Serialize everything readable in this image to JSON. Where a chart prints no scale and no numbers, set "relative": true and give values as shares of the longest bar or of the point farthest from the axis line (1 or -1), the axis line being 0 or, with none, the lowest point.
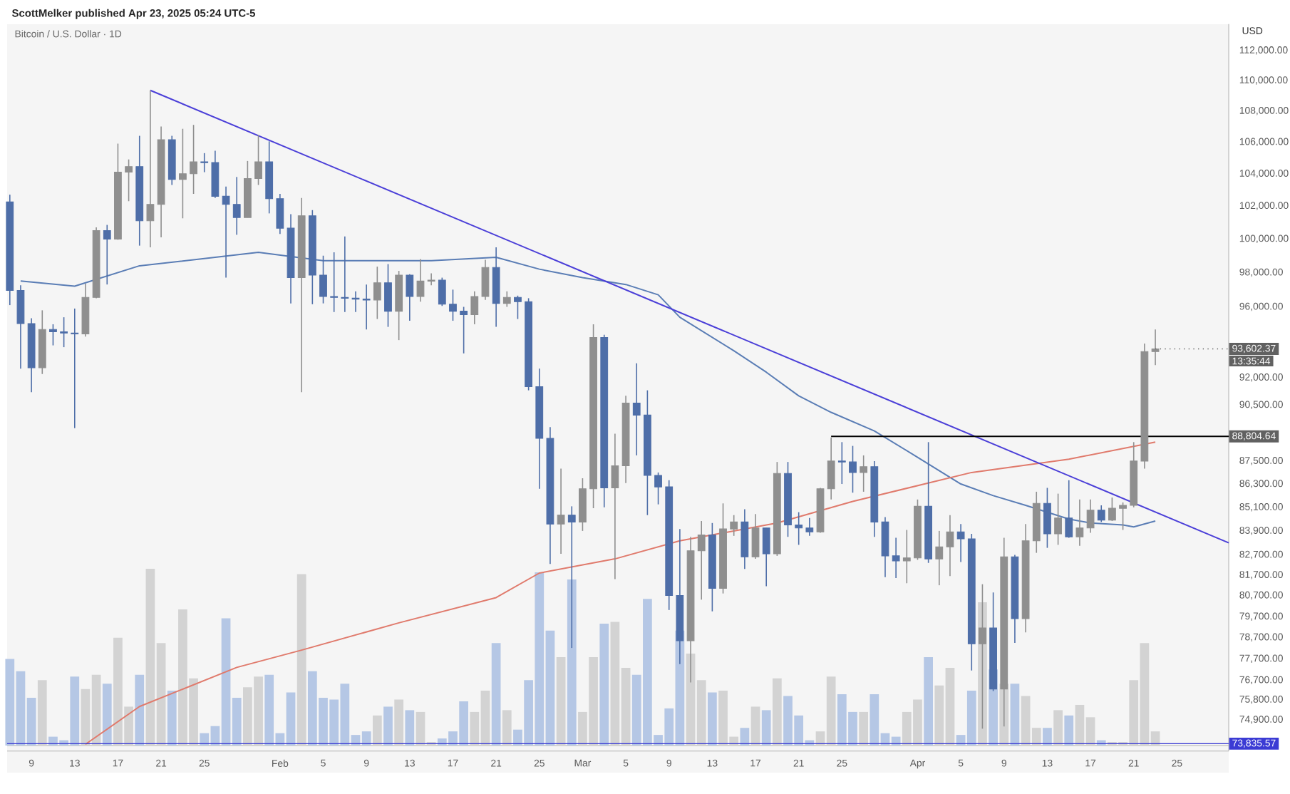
{
  "chart_data": [
    {
      "type": "candlestick",
      "title": "Bitcoin / U.S. Dollar · 1D",
      "ylabel": "USD",
      "annotations": [
        "ScottMelker published Apr 23, 2025 05:24 UTC-5",
        {
          "text": "93,602.37",
          "x": "2025-04-23",
          "y": 93602.37
        },
        "13:35:44",
        {
          "text": "88,804.64",
          "x": "2025-04-29T19:00",
          "y": 88804.64
        }
      ],
      "log": true,
      "xlim": [
        "2025-01-06T18:00",
        "2025-04-29T19:00"
      ],
      "ylim": [
        73500,
        113800
      ],
      "xticks": [
        {
          "value": "2025-01-09",
          "label": "9"
        },
        {
          "value": "2025-01-13",
          "label": "13"
        },
        {
          "value": "2025-01-17",
          "label": "17"
        },
        {
          "value": "2025-01-21",
          "label": "21"
        },
        {
          "value": "2025-01-25",
          "label": "25"
        },
        {
          "value": "2025-02-01",
          "label": "Feb"
        },
        {
          "value": "2025-02-05",
          "label": "5"
        },
        {
          "value": "2025-02-09",
          "label": "9"
        },
        {
          "value": "2025-02-13",
          "label": "13"
        },
        {
          "value": "2025-02-17",
          "label": "17"
        },
        {
          "value": "2025-02-21",
          "label": "21"
        },
        {
          "value": "2025-02-25",
          "label": "25"
        },
        {
          "value": "2025-03-01",
          "label": "Mar"
        },
        {
          "value": "2025-03-05",
          "label": "5"
        },
        {
          "value": "2025-03-09",
          "label": "9"
        },
        {
          "value": "2025-03-13",
          "label": "13"
        },
        {
          "value": "2025-03-17",
          "label": "17"
        },
        {
          "value": "2025-03-21",
          "label": "21"
        },
        {
          "value": "2025-03-25",
          "label": "25"
        },
        {
          "value": "2025-04-01",
          "label": "Apr"
        },
        {
          "value": "2025-04-05",
          "label": "5"
        },
        {
          "value": "2025-04-09",
          "label": "9"
        },
        {
          "value": "2025-04-13",
          "label": "13"
        },
        {
          "value": "2025-04-17",
          "label": "17"
        },
        {
          "value": "2025-04-21",
          "label": "21"
        },
        {
          "value": "2025-04-25",
          "label": "25"
        }
      ],
      "yticks": [
        {
          "value": 112000,
          "label": "112,000.00"
        },
        {
          "value": 110000,
          "label": "110,000.00"
        },
        {
          "value": 108000,
          "label": "108,000.00"
        },
        {
          "value": 106000,
          "label": "106,000.00"
        },
        {
          "value": 104000,
          "label": "104,000.00"
        },
        {
          "value": 102000,
          "label": "102,000.00"
        },
        {
          "value": 100000,
          "label": "100,000.00"
        },
        {
          "value": 98000,
          "label": "98,000.00"
        },
        {
          "value": 96000,
          "label": "96,000.00"
        },
        {
          "value": 92000,
          "label": "92,000.00"
        },
        {
          "value": 90500,
          "label": "90,500.00"
        },
        {
          "value": 87500,
          "label": "87,500.00"
        },
        {
          "value": 86300,
          "label": "86,300.00"
        },
        {
          "value": 85100,
          "label": "85,100.00"
        },
        {
          "value": 83900,
          "label": "83,900.00"
        },
        {
          "value": 82700,
          "label": "82,700.00"
        },
        {
          "value": 81700,
          "label": "81,700.00"
        },
        {
          "value": 80700,
          "label": "80,700.00"
        },
        {
          "value": 79700,
          "label": "79,700.00"
        },
        {
          "value": 78700,
          "label": "78,700.00"
        },
        {
          "value": 77700,
          "label": "77,700.00"
        },
        {
          "value": 76700,
          "label": "76,700.00"
        },
        {
          "value": 75800,
          "label": "75,800.00"
        },
        {
          "value": 74900,
          "label": "74,900.00"
        }
      ],
      "ref_lines": [
        {
          "axis": "y",
          "value": 73835.57,
          "label": "73,835.57",
          "color": "#3b3bd4"
        }
      ],
      "x": [
        "2025-01-07",
        "2025-01-08",
        "2025-01-09",
        "2025-01-10",
        "2025-01-11",
        "2025-01-12",
        "2025-01-13",
        "2025-01-14",
        "2025-01-15",
        "2025-01-16",
        "2025-01-17",
        "2025-01-18",
        "2025-01-19",
        "2025-01-20",
        "2025-01-21",
        "2025-01-22",
        "2025-01-23",
        "2025-01-24",
        "2025-01-25",
        "2025-01-26",
        "2025-01-27",
        "2025-01-28",
        "2025-01-29",
        "2025-01-30",
        "2025-01-31",
        "2025-02-01",
        "2025-02-02",
        "2025-02-03",
        "2025-02-04",
        "2025-02-05",
        "2025-02-06",
        "2025-02-07",
        "2025-02-08",
        "2025-02-09",
        "2025-02-10",
        "2025-02-11",
        "2025-02-12",
        "2025-02-13",
        "2025-02-14",
        "2025-02-15",
        "2025-02-16",
        "2025-02-17",
        "2025-02-18",
        "2025-02-19",
        "2025-02-20",
        "2025-02-21",
        "2025-02-22",
        "2025-02-23",
        "2025-02-24",
        "2025-02-25",
        "2025-02-26",
        "2025-02-27",
        "2025-02-28",
        "2025-03-01",
        "2025-03-02",
        "2025-03-03",
        "2025-03-04",
        "2025-03-05",
        "2025-03-06",
        "2025-03-07",
        "2025-03-08",
        "2025-03-09",
        "2025-03-10",
        "2025-03-11",
        "2025-03-12",
        "2025-03-13",
        "2025-03-14",
        "2025-03-15",
        "2025-03-16",
        "2025-03-17",
        "2025-03-18",
        "2025-03-19",
        "2025-03-20",
        "2025-03-21",
        "2025-03-22",
        "2025-03-23",
        "2025-03-24",
        "2025-03-25",
        "2025-03-26",
        "2025-03-27",
        "2025-03-28",
        "2025-03-29",
        "2025-03-30",
        "2025-03-31",
        "2025-04-01",
        "2025-04-02",
        "2025-04-03",
        "2025-04-04",
        "2025-04-05",
        "2025-04-06",
        "2025-04-07",
        "2025-04-08",
        "2025-04-09",
        "2025-04-10",
        "2025-04-11",
        "2025-04-12",
        "2025-04-13",
        "2025-04-14",
        "2025-04-15",
        "2025-04-16",
        "2025-04-17",
        "2025-04-18",
        "2025-04-19",
        "2025-04-20",
        "2025-04-21",
        "2025-04-22",
        "2025-04-23"
      ],
      "ohlc": [
        [
          102250,
          102700,
          96100,
          96950
        ],
        [
          96950,
          97250,
          92500,
          95040
        ],
        [
          95040,
          95350,
          91200,
          92550
        ],
        [
          92550,
          95800,
          92200,
          94700
        ],
        [
          94700,
          95000,
          93800,
          94570
        ],
        [
          94570,
          95400,
          93700,
          94500
        ],
        [
          94500,
          95900,
          89250,
          94450
        ],
        [
          94450,
          97350,
          94300,
          96550
        ],
        [
          96550,
          100700,
          96500,
          100500
        ],
        [
          100500,
          100850,
          97300,
          99990
        ],
        [
          99990,
          105900,
          99950,
          104100
        ],
        [
          104100,
          104900,
          102300,
          104450
        ],
        [
          104450,
          106400,
          99600,
          101100
        ],
        [
          101100,
          109350,
          99500,
          102100
        ],
        [
          102100,
          107000,
          100100,
          106150
        ],
        [
          106150,
          106400,
          103300,
          103650
        ],
        [
          103650,
          106850,
          101250,
          104000
        ],
        [
          104000,
          107100,
          102750,
          104750
        ],
        [
          104750,
          105300,
          104100,
          104700
        ],
        [
          104700,
          105450,
          102500,
          102600
        ],
        [
          102600,
          103200,
          97700,
          102100
        ],
        [
          102100,
          103800,
          100250,
          101300
        ],
        [
          101300,
          104800,
          101300,
          103700
        ],
        [
          103700,
          106450,
          103300,
          104750
        ],
        [
          104750,
          106050,
          101550,
          102450
        ],
        [
          102450,
          102750,
          100300,
          100650
        ],
        [
          100650,
          101500,
          96200,
          97700
        ],
        [
          97700,
          102500,
          91200,
          101400
        ],
        [
          101400,
          101750,
          96150,
          97850
        ],
        [
          97850,
          99000,
          96200,
          96600
        ],
        [
          96600,
          99200,
          95700,
          96550
        ],
        [
          96550,
          100150,
          95700,
          96500
        ],
        [
          96500,
          96900,
          95700,
          96450
        ],
        [
          96450,
          97300,
          94700,
          96400
        ],
        [
          96400,
          98350,
          95300,
          97400
        ],
        [
          97400,
          98500,
          94850,
          95750
        ],
        [
          95750,
          98100,
          94100,
          97850
        ],
        [
          97850,
          97900,
          95200,
          96600
        ],
        [
          96600,
          98800,
          96300,
          97500
        ],
        [
          97500,
          97950,
          97250,
          97550
        ],
        [
          97550,
          97700,
          96050,
          96150
        ],
        [
          96150,
          97000,
          95200,
          95750
        ],
        [
          95750,
          96000,
          93350,
          95550
        ],
        [
          95550,
          96900,
          95000,
          96600
        ],
        [
          96600,
          98750,
          96400,
          98300
        ],
        [
          98300,
          99500,
          94850,
          96200
        ],
        [
          96200,
          96900,
          96000,
          96550
        ],
        [
          96550,
          96650,
          95300,
          96300
        ],
        [
          96300,
          96500,
          91300,
          91500
        ],
        [
          91500,
          92500,
          86050,
          88700
        ],
        [
          88700,
          89300,
          82250,
          84250
        ],
        [
          84250,
          87100,
          82750,
          84700
        ],
        [
          84700,
          85150,
          78200,
          84350
        ],
        [
          84350,
          86600,
          83900,
          86050
        ],
        [
          86050,
          95000,
          85050,
          94250
        ],
        [
          94250,
          94400,
          85100,
          86100
        ],
        [
          86100,
          88950,
          81500,
          87250
        ],
        [
          87250,
          91000,
          86350,
          90600
        ],
        [
          90600,
          92800,
          87800,
          89950
        ],
        [
          89950,
          91300,
          84700,
          86750
        ],
        [
          86750,
          86900,
          85250,
          86150
        ],
        [
          86150,
          86500,
          80000,
          80700
        ],
        [
          80700,
          84000,
          77450,
          78550
        ],
        [
          78550,
          83600,
          76600,
          82900
        ],
        [
          82900,
          84400,
          80500,
          83700
        ],
        [
          83700,
          84300,
          79950,
          81050
        ],
        [
          81050,
          85300,
          80800,
          84000
        ],
        [
          84000,
          84700,
          83650,
          84350
        ],
        [
          84350,
          85000,
          82000,
          82600
        ],
        [
          82600,
          84750,
          82500,
          84050
        ],
        [
          84050,
          84050,
          81150,
          82750
        ],
        [
          82750,
          87450,
          82650,
          86850
        ],
        [
          86850,
          87450,
          83600,
          84200
        ],
        [
          84200,
          84850,
          83200,
          84050
        ],
        [
          84050,
          84550,
          83650,
          83850
        ],
        [
          83850,
          86100,
          83800,
          86050
        ],
        [
          86050,
          88750,
          85500,
          87500
        ],
        [
          87500,
          88500,
          86300,
          87450
        ],
        [
          87450,
          88300,
          85850,
          86900
        ],
        [
          86900,
          87800,
          85900,
          87200
        ],
        [
          87200,
          87500,
          83600,
          84350
        ],
        [
          84350,
          84600,
          81600,
          82650
        ],
        [
          82650,
          83550,
          81550,
          82400
        ],
        [
          82400,
          83950,
          81300,
          82550
        ],
        [
          82550,
          85500,
          82450,
          85150
        ],
        [
          85150,
          88500,
          82300,
          82500
        ],
        [
          82500,
          83900,
          81200,
          83100
        ],
        [
          83100,
          84700,
          81650,
          83850
        ],
        [
          83850,
          84250,
          82350,
          83500
        ],
        [
          83500,
          83750,
          77150,
          78400
        ],
        [
          78400,
          81250,
          74500,
          79150
        ],
        [
          79150,
          80850,
          76200,
          76300
        ],
        [
          76300,
          83550,
          74600,
          82600
        ],
        [
          82600,
          82700,
          78450,
          79600
        ],
        [
          79600,
          84250,
          78950,
          83400
        ],
        [
          83400,
          85900,
          82800,
          85300
        ],
        [
          85300,
          86100,
          83050,
          83750
        ],
        [
          83750,
          85800,
          83200,
          84550
        ],
        [
          84550,
          86500,
          83550,
          83600
        ],
        [
          83600,
          85500,
          83150,
          84050
        ],
        [
          84050,
          85500,
          83800,
          84950
        ],
        [
          84950,
          85200,
          84350,
          84450
        ],
        [
          84450,
          85600,
          84400,
          85050
        ],
        [
          85050,
          85350,
          83950,
          85200
        ],
        [
          85200,
          88500,
          85100,
          87500
        ],
        [
          87500,
          93900,
          87100,
          93450
        ],
        [
          93450,
          94700,
          92700,
          93602.37
        ]
      ],
      "colors": [
        "#4e6ea8",
        "#4e6ea8",
        "#4e6ea8",
        "#8f8f8f",
        "#4e6ea8",
        "#4e6ea8",
        "#4e6ea8",
        "#8f8f8f",
        "#8f8f8f",
        "#4e6ea8",
        "#8f8f8f",
        "#8f8f8f",
        "#4e6ea8",
        "#8f8f8f",
        "#8f8f8f",
        "#4e6ea8",
        "#8f8f8f",
        "#8f8f8f",
        "#4e6ea8",
        "#4e6ea8",
        "#4e6ea8",
        "#4e6ea8",
        "#8f8f8f",
        "#8f8f8f",
        "#4e6ea8",
        "#4e6ea8",
        "#4e6ea8",
        "#8f8f8f",
        "#4e6ea8",
        "#4e6ea8",
        "#4e6ea8",
        "#4e6ea8",
        "#4e6ea8",
        "#4e6ea8",
        "#8f8f8f",
        "#4e6ea8",
        "#8f8f8f",
        "#4e6ea8",
        "#8f8f8f",
        "#8f8f8f",
        "#4e6ea8",
        "#4e6ea8",
        "#4e6ea8",
        "#8f8f8f",
        "#8f8f8f",
        "#4e6ea8",
        "#8f8f8f",
        "#4e6ea8",
        "#4e6ea8",
        "#4e6ea8",
        "#4e6ea8",
        "#8f8f8f",
        "#4e6ea8",
        "#8f8f8f",
        "#8f8f8f",
        "#4e6ea8",
        "#8f8f8f",
        "#8f8f8f",
        "#4e6ea8",
        "#4e6ea8",
        "#4e6ea8",
        "#4e6ea8",
        "#4e6ea8",
        "#8f8f8f",
        "#8f8f8f",
        "#4e6ea8",
        "#8f8f8f",
        "#8f8f8f",
        "#4e6ea8",
        "#8f8f8f",
        "#4e6ea8",
        "#8f8f8f",
        "#4e6ea8",
        "#4e6ea8",
        "#4e6ea8",
        "#8f8f8f",
        "#8f8f8f",
        "#4e6ea8",
        "#4e6ea8",
        "#8f8f8f",
        "#4e6ea8",
        "#4e6ea8",
        "#4e6ea8",
        "#8f8f8f",
        "#8f8f8f",
        "#4e6ea8",
        "#8f8f8f",
        "#8f8f8f",
        "#4e6ea8",
        "#4e6ea8",
        "#8f8f8f",
        "#4e6ea8",
        "#8f8f8f",
        "#4e6ea8",
        "#8f8f8f",
        "#8f8f8f",
        "#4e6ea8",
        "#8f8f8f",
        "#4e6ea8",
        "#8f8f8f",
        "#8f8f8f",
        "#4e6ea8",
        "#8f8f8f",
        "#8f8f8f",
        "#8f8f8f",
        "#8f8f8f",
        "#8f8f8f"
      ],
      "series": [
        {
          "type": "line",
          "color": "#5a7db5",
          "x": [
            "2025-01-08",
            "2025-01-13",
            "2025-01-14",
            "2025-01-19",
            "2025-01-26",
            "2025-01-30",
            "2025-02-05",
            "2025-02-15",
            "2025-02-21",
            "2025-02-25",
            "2025-03-01",
            "2025-03-05",
            "2025-03-08",
            "2025-03-10",
            "2025-03-15",
            "2025-03-18",
            "2025-03-21",
            "2025-03-24",
            "2025-03-28",
            "2025-04-01",
            "2025-04-05",
            "2025-04-08",
            "2025-04-11",
            "2025-04-15",
            "2025-04-17",
            "2025-04-20",
            "2025-04-21",
            "2025-04-23"
          ],
          "values": [
            97500,
            97200,
            97400,
            98400,
            98900,
            99200,
            98700,
            98700,
            98900,
            98200,
            97700,
            97300,
            96700,
            95400,
            93500,
            92300,
            91000,
            90100,
            89100,
            87700,
            86300,
            85700,
            85200,
            84500,
            84300,
            84200,
            84100,
            84400
          ]
        },
        {
          "type": "line",
          "color": "#e07a6c",
          "x": [
            "2025-01-14",
            "2025-01-19",
            "2025-01-28",
            "2025-02-03",
            "2025-02-12",
            "2025-02-21",
            "2025-02-25",
            "2025-03-04",
            "2025-03-10",
            "2025-03-19",
            "2025-03-26",
            "2025-04-06",
            "2025-04-15",
            "2025-04-23"
          ],
          "values": [
            73800,
            75500,
            77300,
            78100,
            79400,
            80600,
            81800,
            82500,
            83400,
            84300,
            85400,
            86900,
            87600,
            88500
          ]
        },
        {
          "type": "line",
          "color": "#4b3fd8",
          "x": [
            "2025-01-20",
            "2025-04-29T19:00"
          ],
          "values": [
            109350,
            83300
          ]
        },
        {
          "type": "line",
          "color": "#000000",
          "x": [
            "2025-03-24",
            "2025-04-29T19:00"
          ],
          "values": [
            88804.64,
            88804.64
          ]
        }
      ]
    },
    {
      "type": "bar",
      "relative": true,
      "tick_labels": false,
      "xlim": [
        "2025-01-06T18:00",
        "2025-04-29T19:00"
      ],
      "x": [
        "2025-01-07",
        "2025-01-08",
        "2025-01-09",
        "2025-01-10",
        "2025-01-11",
        "2025-01-12",
        "2025-01-13",
        "2025-01-14",
        "2025-01-15",
        "2025-01-16",
        "2025-01-17",
        "2025-01-18",
        "2025-01-19",
        "2025-01-20",
        "2025-01-21",
        "2025-01-22",
        "2025-01-23",
        "2025-01-24",
        "2025-01-25",
        "2025-01-26",
        "2025-01-27",
        "2025-01-28",
        "2025-01-29",
        "2025-01-30",
        "2025-01-31",
        "2025-02-01",
        "2025-02-02",
        "2025-02-03",
        "2025-02-04",
        "2025-02-05",
        "2025-02-06",
        "2025-02-07",
        "2025-02-08",
        "2025-02-09",
        "2025-02-10",
        "2025-02-11",
        "2025-02-12",
        "2025-02-13",
        "2025-02-14",
        "2025-02-15",
        "2025-02-16",
        "2025-02-17",
        "2025-02-18",
        "2025-02-19",
        "2025-02-20",
        "2025-02-21",
        "2025-02-22",
        "2025-02-23",
        "2025-02-24",
        "2025-02-25",
        "2025-02-26",
        "2025-02-27",
        "2025-02-28",
        "2025-03-01",
        "2025-03-02",
        "2025-03-03",
        "2025-03-04",
        "2025-03-05",
        "2025-03-06",
        "2025-03-07",
        "2025-03-08",
        "2025-03-09",
        "2025-03-10",
        "2025-03-11",
        "2025-03-12",
        "2025-03-13",
        "2025-03-14",
        "2025-03-15",
        "2025-03-16",
        "2025-03-17",
        "2025-03-18",
        "2025-03-19",
        "2025-03-20",
        "2025-03-21",
        "2025-03-22",
        "2025-03-23",
        "2025-03-24",
        "2025-03-25",
        "2025-03-26",
        "2025-03-27",
        "2025-03-28",
        "2025-03-29",
        "2025-03-30",
        "2025-03-31",
        "2025-04-01",
        "2025-04-02",
        "2025-04-03",
        "2025-04-04",
        "2025-04-05",
        "2025-04-06",
        "2025-04-07",
        "2025-04-08",
        "2025-04-09",
        "2025-04-10",
        "2025-04-11",
        "2025-04-12",
        "2025-04-13",
        "2025-04-14",
        "2025-04-15",
        "2025-04-16",
        "2025-04-17",
        "2025-04-18",
        "2025-04-19",
        "2025-04-20",
        "2025-04-21",
        "2025-04-22",
        "2025-04-23"
      ],
      "values": [
        0.49,
        0.42,
        0.27,
        0.37,
        0.05,
        0.03,
        0.39,
        0.32,
        0.4,
        0.35,
        0.61,
        0.22,
        0.4,
        1,
        0.58,
        0.31,
        0.77,
        0.38,
        0.07,
        0.11,
        0.72,
        0.27,
        0.33,
        0.39,
        0.4,
        0.07,
        0.3,
        0.97,
        0.42,
        0.27,
        0.26,
        0.35,
        0.06,
        0.08,
        0.17,
        0.22,
        0.26,
        0.2,
        0.19,
        0.02,
        0.04,
        0.08,
        0.25,
        0.19,
        0.31,
        0.58,
        0.2,
        0.09,
        0.37,
        0.98,
        0.65,
        0.5,
        0.94,
        0.19,
        0.5,
        0.69,
        0.7,
        0.44,
        0.4,
        0.83,
        0.06,
        0.21,
        0.65,
        0.52,
        0.37,
        0.3,
        0.31,
        0.05,
        0.1,
        0.22,
        0.2,
        0.38,
        0.28,
        0.17,
        0.03,
        0.08,
        0.39,
        0.29,
        0.19,
        0.19,
        0.29,
        0.07,
        0.05,
        0.19,
        0.26,
        0.5,
        0.34,
        0.44,
        0.06,
        0.31,
        0.81,
        0.43,
        0.35,
        0.35,
        0.28,
        0.1,
        0.1,
        0.2,
        0.17,
        0.23,
        0.16,
        0.03,
        0.02,
        0.02,
        0.37,
        0.58,
        0.08
      ],
      "colors": [
        "#b5c7e5",
        "#b5c7e5",
        "#b5c7e5",
        "#d3d3d3",
        "#b5c7e5",
        "#b5c7e5",
        "#b5c7e5",
        "#d3d3d3",
        "#d3d3d3",
        "#b5c7e5",
        "#d3d3d3",
        "#d3d3d3",
        "#b5c7e5",
        "#d3d3d3",
        "#d3d3d3",
        "#b5c7e5",
        "#d3d3d3",
        "#d3d3d3",
        "#b5c7e5",
        "#b5c7e5",
        "#b5c7e5",
        "#b5c7e5",
        "#d3d3d3",
        "#d3d3d3",
        "#b5c7e5",
        "#b5c7e5",
        "#b5c7e5",
        "#d3d3d3",
        "#b5c7e5",
        "#b5c7e5",
        "#b5c7e5",
        "#b5c7e5",
        "#b5c7e5",
        "#b5c7e5",
        "#d3d3d3",
        "#b5c7e5",
        "#d3d3d3",
        "#b5c7e5",
        "#d3d3d3",
        "#d3d3d3",
        "#b5c7e5",
        "#b5c7e5",
        "#b5c7e5",
        "#d3d3d3",
        "#d3d3d3",
        "#b5c7e5",
        "#d3d3d3",
        "#b5c7e5",
        "#b5c7e5",
        "#b5c7e5",
        "#b5c7e5",
        "#d3d3d3",
        "#b5c7e5",
        "#d3d3d3",
        "#d3d3d3",
        "#b5c7e5",
        "#d3d3d3",
        "#d3d3d3",
        "#b5c7e5",
        "#b5c7e5",
        "#b5c7e5",
        "#b5c7e5",
        "#b5c7e5",
        "#d3d3d3",
        "#d3d3d3",
        "#b5c7e5",
        "#d3d3d3",
        "#d3d3d3",
        "#b5c7e5",
        "#d3d3d3",
        "#b5c7e5",
        "#d3d3d3",
        "#b5c7e5",
        "#b5c7e5",
        "#b5c7e5",
        "#d3d3d3",
        "#d3d3d3",
        "#b5c7e5",
        "#b5c7e5",
        "#d3d3d3",
        "#b5c7e5",
        "#b5c7e5",
        "#b5c7e5",
        "#d3d3d3",
        "#d3d3d3",
        "#b5c7e5",
        "#d3d3d3",
        "#d3d3d3",
        "#b5c7e5",
        "#b5c7e5",
        "#d3d3d3",
        "#b5c7e5",
        "#d3d3d3",
        "#b5c7e5",
        "#d3d3d3",
        "#d3d3d3",
        "#b5c7e5",
        "#d3d3d3",
        "#b5c7e5",
        "#d3d3d3",
        "#d3d3d3",
        "#b5c7e5",
        "#d3d3d3",
        "#d3d3d3",
        "#d3d3d3",
        "#d3d3d3",
        "#d3d3d3"
      ]
    }
  ]
}
